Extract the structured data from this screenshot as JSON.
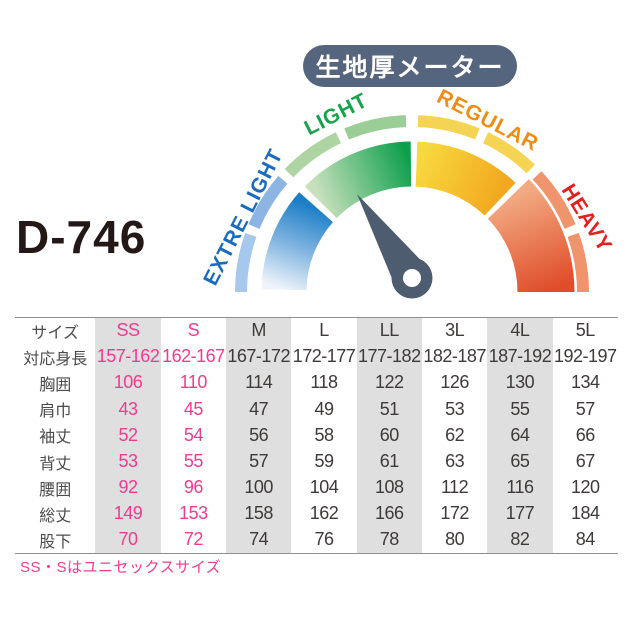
{
  "product": {
    "code": "D-746"
  },
  "gauge": {
    "title": "生地厚メーター",
    "title_bg_color": "#55657d",
    "needle_color": "#4d5c6e",
    "needle_points_to": "LIGHT",
    "labels": [
      {
        "id": "extre-light",
        "text": "EXTRE LIGHT",
        "color": "#1b6cbf"
      },
      {
        "id": "light",
        "text": "LIGHT",
        "color": "#17a24b"
      },
      {
        "id": "regular",
        "text": "REGULAR",
        "color": "#ee8d13"
      },
      {
        "id": "heavy",
        "text": "HEAVY",
        "color": "#e3201e"
      }
    ],
    "zone_colors": {
      "extre_light": "#1b7ec7",
      "light": "#0da04c",
      "regular": "#f2a81f",
      "heavy": "#e04d2a"
    }
  },
  "size_table": {
    "columns": [
      "サイズ",
      "SS",
      "S",
      "M",
      "L",
      "LL",
      "3L",
      "4L",
      "5L"
    ],
    "rows": [
      [
        "対応身長",
        "157-162",
        "162-167",
        "167-172",
        "172-177",
        "177-182",
        "182-187",
        "187-192",
        "192-197"
      ],
      [
        "胸囲",
        "106",
        "110",
        "114",
        "118",
        "122",
        "126",
        "130",
        "134"
      ],
      [
        "肩巾",
        "43",
        "45",
        "47",
        "49",
        "51",
        "53",
        "55",
        "57"
      ],
      [
        "袖丈",
        "52",
        "54",
        "56",
        "58",
        "60",
        "62",
        "64",
        "66"
      ],
      [
        "背丈",
        "53",
        "55",
        "57",
        "59",
        "61",
        "63",
        "65",
        "67"
      ],
      [
        "腰囲",
        "92",
        "96",
        "100",
        "104",
        "108",
        "112",
        "116",
        "120"
      ],
      [
        "総丈",
        "149",
        "153",
        "158",
        "162",
        "166",
        "172",
        "177",
        "184"
      ],
      [
        "股下",
        "70",
        "72",
        "74",
        "76",
        "78",
        "80",
        "82",
        "84"
      ]
    ],
    "unisex_sizes": [
      "SS",
      "S"
    ],
    "note": "SS・Sはユニセックスサイズ",
    "colors": {
      "highlight_text": "#ee3d8f",
      "value_text": "#3e3a39",
      "shaded_band": "#dfdfdf"
    }
  }
}
